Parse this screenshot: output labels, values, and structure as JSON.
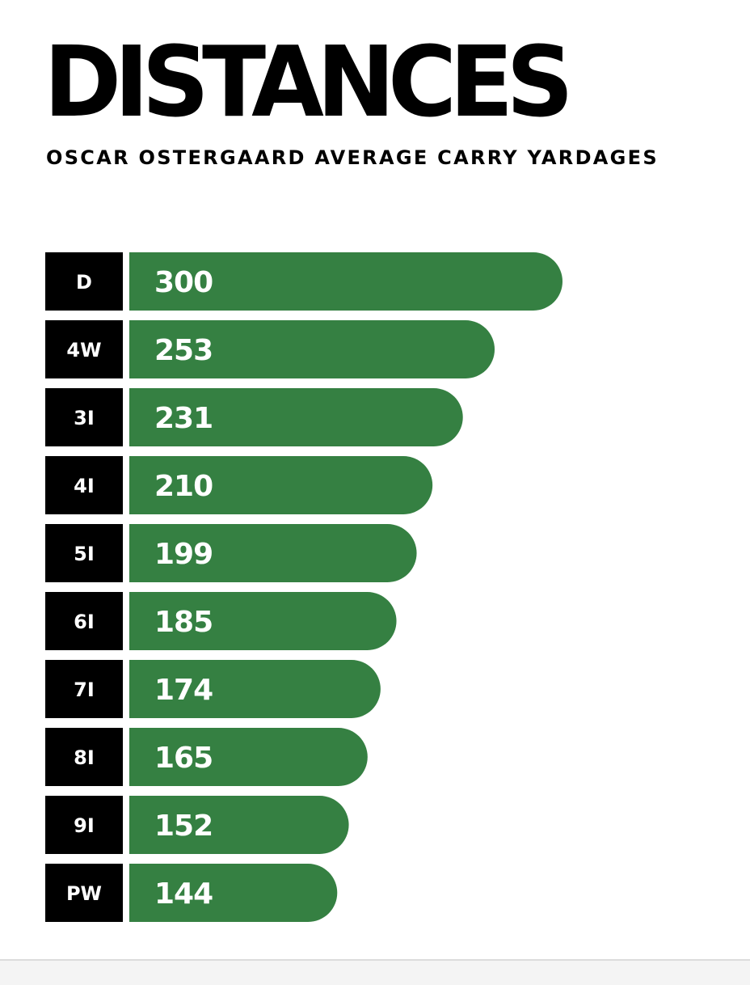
{
  "header": {
    "title": "DISTANCES",
    "subtitle": "OSCAR OSTERGAARD AVERAGE CARRY YARDAGES"
  },
  "colors": {
    "bar": "#358042",
    "label_box": "#000000",
    "text_on_dark": "#ffffff"
  },
  "chart_data": {
    "type": "bar",
    "orientation": "horizontal",
    "title": "DISTANCES",
    "subtitle": "OSCAR OSTERGAARD AVERAGE CARRY YARDAGES",
    "categories": [
      "D",
      "4W",
      "3I",
      "4I",
      "5I",
      "6I",
      "7I",
      "8I",
      "9I",
      "PW"
    ],
    "values": [
      300,
      253,
      231,
      210,
      199,
      185,
      174,
      165,
      152,
      144
    ],
    "data_labels": [
      "300",
      "253",
      "231",
      "210",
      "199",
      "185",
      "174",
      "165",
      "152",
      "144"
    ],
    "grid": false,
    "legend": "none"
  }
}
